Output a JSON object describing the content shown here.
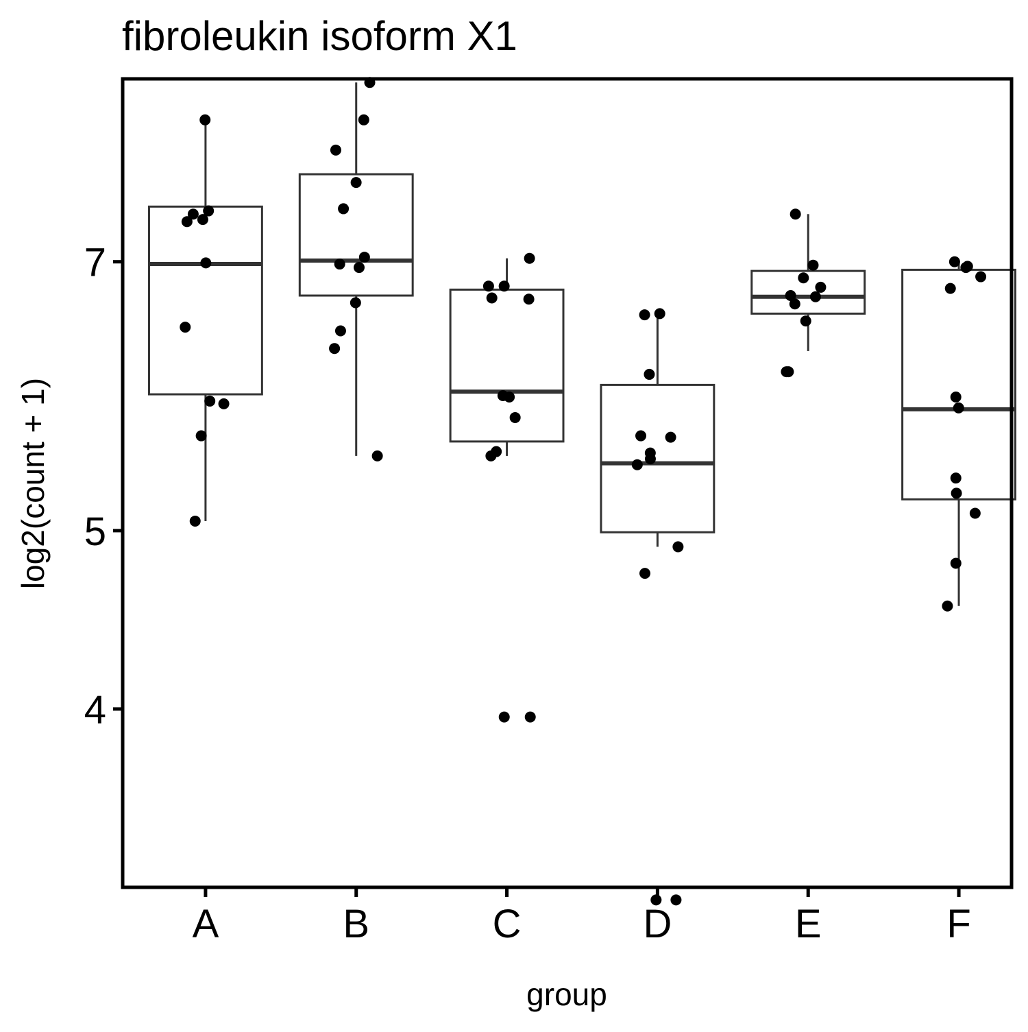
{
  "chart_data": {
    "type": "box",
    "title": "fibroleukin isoform X1",
    "xlabel": "group",
    "ylabel": "log2(count + 1)",
    "y_scale": "log2",
    "ylim": [
      3.2,
      8.8
    ],
    "y_ticks": [
      4,
      5,
      7
    ],
    "y_tick_labels": [
      "4",
      "5",
      "7"
    ],
    "categories": [
      "A",
      "B",
      "C",
      "D",
      "E",
      "F"
    ],
    "grid": false,
    "legend": "none",
    "colors": {
      "box_stroke": "#333333",
      "points": "#000000",
      "frame": "#000000"
    },
    "boxes": [
      {
        "group": "A",
        "q1": 5.93,
        "median": 6.98,
        "q3": 7.5,
        "whisker_low": 5.06,
        "whisker_high": 8.36
      },
      {
        "group": "B",
        "q1": 6.71,
        "median": 7.01,
        "q3": 7.81,
        "whisker_low": 5.49,
        "whisker_high": 8.76
      },
      {
        "group": "C",
        "q1": 5.59,
        "median": 5.95,
        "q3": 6.76,
        "whisker_low": 5.49,
        "whisker_high": 7.03
      },
      {
        "group": "D",
        "q1": 4.99,
        "median": 5.44,
        "q3": 6.0,
        "whisker_low": 4.9,
        "whisker_high": 6.55
      },
      {
        "group": "E",
        "q1": 6.56,
        "median": 6.7,
        "q3": 6.92,
        "whisker_low": 6.26,
        "whisker_high": 7.43
      },
      {
        "group": "F",
        "q1": 5.2,
        "median": 5.82,
        "q3": 6.93,
        "whisker_low": 4.55,
        "whisker_high": 7.0
      }
    ],
    "points": [
      {
        "group": "A",
        "values": [
          8.36,
          7.46,
          7.36,
          7.43,
          7.38,
          6.99,
          6.45,
          5.86,
          5.88,
          5.63,
          5.06
        ]
      },
      {
        "group": "B",
        "values": [
          8.76,
          8.36,
          8.05,
          7.73,
          7.48,
          7.04,
          6.98,
          6.95,
          6.65,
          6.42,
          6.28,
          5.49
        ]
      },
      {
        "group": "C",
        "values": [
          7.03,
          6.79,
          6.79,
          6.68,
          6.69,
          5.92,
          5.91,
          5.76,
          5.52,
          5.49,
          3.96,
          3.96
        ]
      },
      {
        "group": "D",
        "values": [
          6.55,
          6.56,
          6.08,
          5.63,
          5.62,
          5.47,
          5.51,
          5.43,
          4.9,
          4.74,
          3.15,
          3.15
        ]
      },
      {
        "group": "E",
        "values": [
          7.43,
          6.97,
          6.86,
          6.78,
          6.7,
          6.71,
          6.64,
          6.5,
          6.1,
          6.1
        ]
      },
      {
        "group": "F",
        "values": [
          7.0,
          6.96,
          6.95,
          6.87,
          6.77,
          5.91,
          5.83,
          5.34,
          5.11,
          5.24,
          4.8,
          4.55
        ]
      }
    ]
  }
}
